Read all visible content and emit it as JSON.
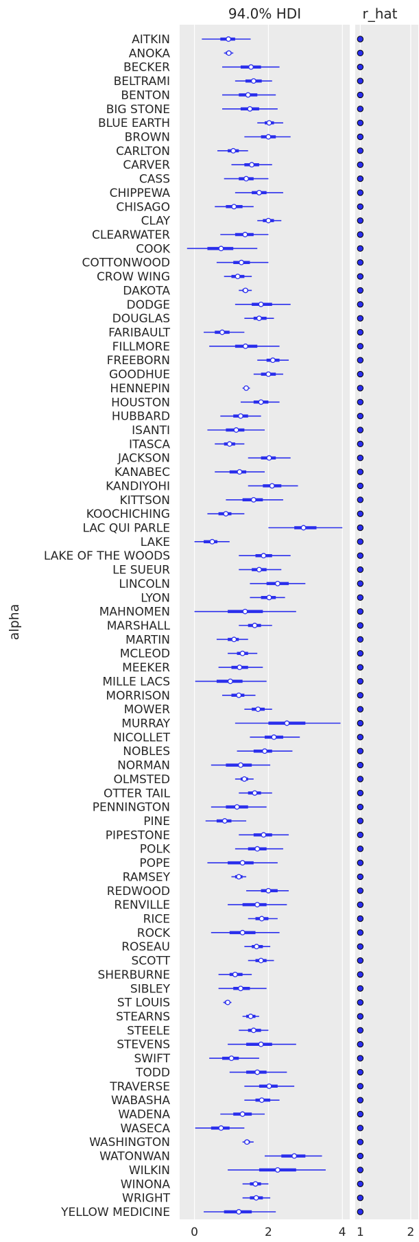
{
  "chart_data": {
    "type": "forest",
    "variable": "alpha",
    "panels": [
      {
        "title": "94.0% HDI",
        "xticks": [
          0,
          2,
          4
        ],
        "xlim": [
          -0.4,
          4.2
        ]
      },
      {
        "title": "r_hat",
        "xticks": [
          1,
          2
        ],
        "xlim": [
          0.9,
          2.15
        ]
      }
    ],
    "categories": [
      "AITKIN",
      "ANOKA",
      "BECKER",
      "BELTRAMI",
      "BENTON",
      "BIG STONE",
      "BLUE EARTH",
      "BROWN",
      "CARLTON",
      "CARVER",
      "CASS",
      "CHIPPEWA",
      "CHISAGO",
      "CLAY",
      "CLEARWATER",
      "COOK",
      "COTTONWOOD",
      "CROW WING",
      "DAKOTA",
      "DODGE",
      "DOUGLAS",
      "FARIBAULT",
      "FILLMORE",
      "FREEBORN",
      "GOODHUE",
      "HENNEPIN",
      "HOUSTON",
      "HUBBARD",
      "ISANTI",
      "ITASCA",
      "JACKSON",
      "KANABEC",
      "KANDIYOHI",
      "KITTSON",
      "KOOCHICHING",
      "LAC QUI PARLE",
      "LAKE",
      "LAKE OF THE WOODS",
      "LE SUEUR",
      "LINCOLN",
      "LYON",
      "MAHNOMEN",
      "MARSHALL",
      "MARTIN",
      "MCLEOD",
      "MEEKER",
      "MILLE LACS",
      "MORRISON",
      "MOWER",
      "MURRAY",
      "NICOLLET",
      "NOBLES",
      "NORMAN",
      "OLMSTED",
      "OTTER TAIL",
      "PENNINGTON",
      "PINE",
      "PIPESTONE",
      "POLK",
      "POPE",
      "RAMSEY",
      "REDWOOD",
      "RENVILLE",
      "RICE",
      "ROCK",
      "ROSEAU",
      "SCOTT",
      "SHERBURNE",
      "SIBLEY",
      "ST LOUIS",
      "STEARNS",
      "STEELE",
      "STEVENS",
      "SWIFT",
      "TODD",
      "TRAVERSE",
      "WABASHA",
      "WADENA",
      "WASECA",
      "WASHINGTON",
      "WATONWAN",
      "WILKIN",
      "WINONA",
      "WRIGHT",
      "YELLOW MEDICINE"
    ],
    "hdi": [
      [
        0.2,
        1.52,
        0.7,
        1.1,
        0.92
      ],
      [
        0.8,
        1.05,
        0.85,
        1.0,
        0.93
      ],
      [
        0.75,
        2.3,
        1.25,
        1.8,
        1.53
      ],
      [
        1.1,
        2.1,
        1.38,
        1.82,
        1.6
      ],
      [
        0.75,
        2.2,
        1.2,
        1.7,
        1.45
      ],
      [
        0.75,
        2.25,
        1.25,
        1.75,
        1.5
      ],
      [
        1.7,
        2.4,
        1.9,
        2.15,
        2.02
      ],
      [
        1.35,
        2.6,
        1.8,
        2.2,
        2.0
      ],
      [
        0.62,
        1.45,
        0.9,
        1.2,
        1.05
      ],
      [
        1.0,
        2.1,
        1.35,
        1.75,
        1.55
      ],
      [
        0.8,
        2.0,
        1.2,
        1.6,
        1.4
      ],
      [
        1.1,
        2.4,
        1.55,
        1.95,
        1.75
      ],
      [
        0.55,
        1.6,
        0.85,
        1.3,
        1.07
      ],
      [
        1.7,
        2.35,
        1.85,
        2.15,
        2.0
      ],
      [
        0.7,
        2.0,
        1.1,
        1.6,
        1.37
      ],
      [
        -0.2,
        1.7,
        0.35,
        1.05,
        0.72
      ],
      [
        0.6,
        2.0,
        1.05,
        1.5,
        1.27
      ],
      [
        0.8,
        1.55,
        1.0,
        1.35,
        1.17
      ],
      [
        1.2,
        1.55,
        1.3,
        1.45,
        1.38
      ],
      [
        1.1,
        2.6,
        1.55,
        2.1,
        1.8
      ],
      [
        1.35,
        2.15,
        1.6,
        1.95,
        1.75
      ],
      [
        0.25,
        1.35,
        0.55,
        0.95,
        0.75
      ],
      [
        0.4,
        2.3,
        1.1,
        1.7,
        1.38
      ],
      [
        1.7,
        2.55,
        1.95,
        2.3,
        2.12
      ],
      [
        1.6,
        2.4,
        1.8,
        2.2,
        2.0
      ],
      [
        1.3,
        1.5,
        1.35,
        1.45,
        1.4
      ],
      [
        1.25,
        2.3,
        1.6,
        2.0,
        1.8
      ],
      [
        0.7,
        1.8,
        1.05,
        1.45,
        1.25
      ],
      [
        0.35,
        1.9,
        0.85,
        1.35,
        1.13
      ],
      [
        0.55,
        1.35,
        0.8,
        1.1,
        0.95
      ],
      [
        1.45,
        2.6,
        1.8,
        2.2,
        2.02
      ],
      [
        0.55,
        1.9,
        0.95,
        1.4,
        1.22
      ],
      [
        1.45,
        2.8,
        1.85,
        2.35,
        2.1
      ],
      [
        0.85,
        2.4,
        1.3,
        1.85,
        1.6
      ],
      [
        0.35,
        1.35,
        0.65,
        1.0,
        0.85
      ],
      [
        2.0,
        4.0,
        2.7,
        3.3,
        2.95
      ],
      [
        0.0,
        0.95,
        0.25,
        0.62,
        0.48
      ],
      [
        1.2,
        2.6,
        1.65,
        2.1,
        1.87
      ],
      [
        1.2,
        2.35,
        1.55,
        1.95,
        1.75
      ],
      [
        1.5,
        3.0,
        1.95,
        2.55,
        2.25
      ],
      [
        1.5,
        2.45,
        1.8,
        2.2,
        2.02
      ],
      [
        0.0,
        2.75,
        0.9,
        1.85,
        1.37
      ],
      [
        1.2,
        2.1,
        1.45,
        1.8,
        1.63
      ],
      [
        0.6,
        1.45,
        0.9,
        1.2,
        1.07
      ],
      [
        0.9,
        1.7,
        1.15,
        1.45,
        1.3
      ],
      [
        0.65,
        1.85,
        1.0,
        1.45,
        1.22
      ],
      [
        0.02,
        1.95,
        0.6,
        1.3,
        0.97
      ],
      [
        0.75,
        1.65,
        1.0,
        1.35,
        1.2
      ],
      [
        1.35,
        2.1,
        1.55,
        1.9,
        1.72
      ],
      [
        1.1,
        3.95,
        2.0,
        3.0,
        2.5
      ],
      [
        1.5,
        2.85,
        1.9,
        2.4,
        2.15
      ],
      [
        1.15,
        2.65,
        1.6,
        2.1,
        1.9
      ],
      [
        0.45,
        2.05,
        0.85,
        1.55,
        1.25
      ],
      [
        1.1,
        1.6,
        1.25,
        1.45,
        1.35
      ],
      [
        1.2,
        2.1,
        1.45,
        1.8,
        1.63
      ],
      [
        0.45,
        1.95,
        0.85,
        1.45,
        1.15
      ],
      [
        0.3,
        1.4,
        0.6,
        1.0,
        0.82
      ],
      [
        1.2,
        2.55,
        1.6,
        2.1,
        1.87
      ],
      [
        1.1,
        2.4,
        1.45,
        1.95,
        1.7
      ],
      [
        0.35,
        2.25,
        0.9,
        1.6,
        1.3
      ],
      [
        1.0,
        1.4,
        1.1,
        1.3,
        1.2
      ],
      [
        1.4,
        2.55,
        1.8,
        2.25,
        2.0
      ],
      [
        0.9,
        2.5,
        1.3,
        1.95,
        1.7
      ],
      [
        1.45,
        2.25,
        1.65,
        2.0,
        1.82
      ],
      [
        0.45,
        2.3,
        0.95,
        1.65,
        1.3
      ],
      [
        1.35,
        2.05,
        1.55,
        1.85,
        1.68
      ],
      [
        1.45,
        2.15,
        1.65,
        1.95,
        1.8
      ],
      [
        0.65,
        1.55,
        0.95,
        1.3,
        1.1
      ],
      [
        0.65,
        1.95,
        1.05,
        1.5,
        1.25
      ],
      [
        0.78,
        1.0,
        0.82,
        0.95,
        0.9
      ],
      [
        1.3,
        1.75,
        1.4,
        1.65,
        1.52
      ],
      [
        1.2,
        2.0,
        1.45,
        1.8,
        1.6
      ],
      [
        0.9,
        2.75,
        1.4,
        2.1,
        1.8
      ],
      [
        0.4,
        1.75,
        0.75,
        1.2,
        1.0
      ],
      [
        0.95,
        2.5,
        1.4,
        1.95,
        1.7
      ],
      [
        1.35,
        2.7,
        1.75,
        2.25,
        2.02
      ],
      [
        1.35,
        2.3,
        1.65,
        2.05,
        1.82
      ],
      [
        0.7,
        1.9,
        1.05,
        1.55,
        1.3
      ],
      [
        0.02,
        1.35,
        0.45,
        0.95,
        0.72
      ],
      [
        1.3,
        1.6,
        1.35,
        1.5,
        1.42
      ],
      [
        1.9,
        3.45,
        2.35,
        3.0,
        2.7
      ],
      [
        0.9,
        3.55,
        1.75,
        2.75,
        2.25
      ],
      [
        1.3,
        2.0,
        1.5,
        1.8,
        1.65
      ],
      [
        1.3,
        2.05,
        1.5,
        1.85,
        1.67
      ],
      [
        0.25,
        2.2,
        0.8,
        1.55,
        1.2
      ]
    ],
    "hdi_fields": [
      "lower",
      "upper",
      "q25",
      "q75",
      "median"
    ],
    "r_hat": 1.0
  },
  "labels": {
    "left_title": "94.0% HDI",
    "right_title": "r_hat",
    "ylabel": "alpha",
    "left_ticks": [
      "0",
      "2",
      "4"
    ],
    "right_ticks": [
      "1",
      "2"
    ]
  },
  "colors": {
    "series": "#2a2eec",
    "panel_background": "#ebebeb",
    "grid": "#ffffff"
  }
}
